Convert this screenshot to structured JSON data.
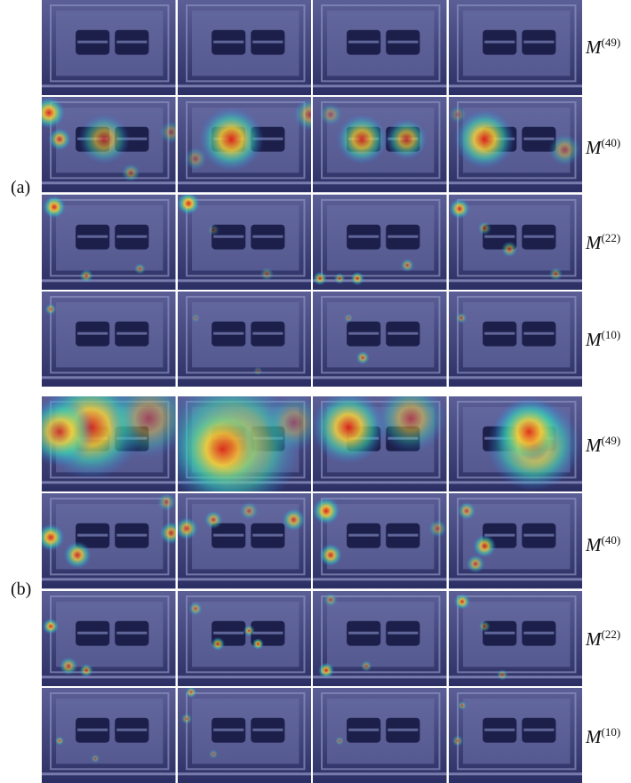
{
  "panels": [
    {
      "label": "(a)",
      "rows": [
        {
          "m": "M",
          "exp": "(49)"
        },
        {
          "m": "M",
          "exp": "(40)"
        },
        {
          "m": "M",
          "exp": "(22)"
        },
        {
          "m": "M",
          "exp": "(10)"
        }
      ]
    },
    {
      "label": "(b)",
      "rows": [
        {
          "m": "M",
          "exp": "(49)"
        },
        {
          "m": "M",
          "exp": "(40)"
        },
        {
          "m": "M",
          "exp": "(22)"
        },
        {
          "m": "M",
          "exp": "(10)"
        }
      ]
    }
  ],
  "colors": {
    "base": "#5b5f96",
    "base_dark": "#2b2f63",
    "slot": "#1c1f4a",
    "heat_hot": "#e0201a",
    "heat_warm": "#f4d23a",
    "heat_mid": "#39d4b0",
    "heat_cool": "#2d7df2"
  }
}
